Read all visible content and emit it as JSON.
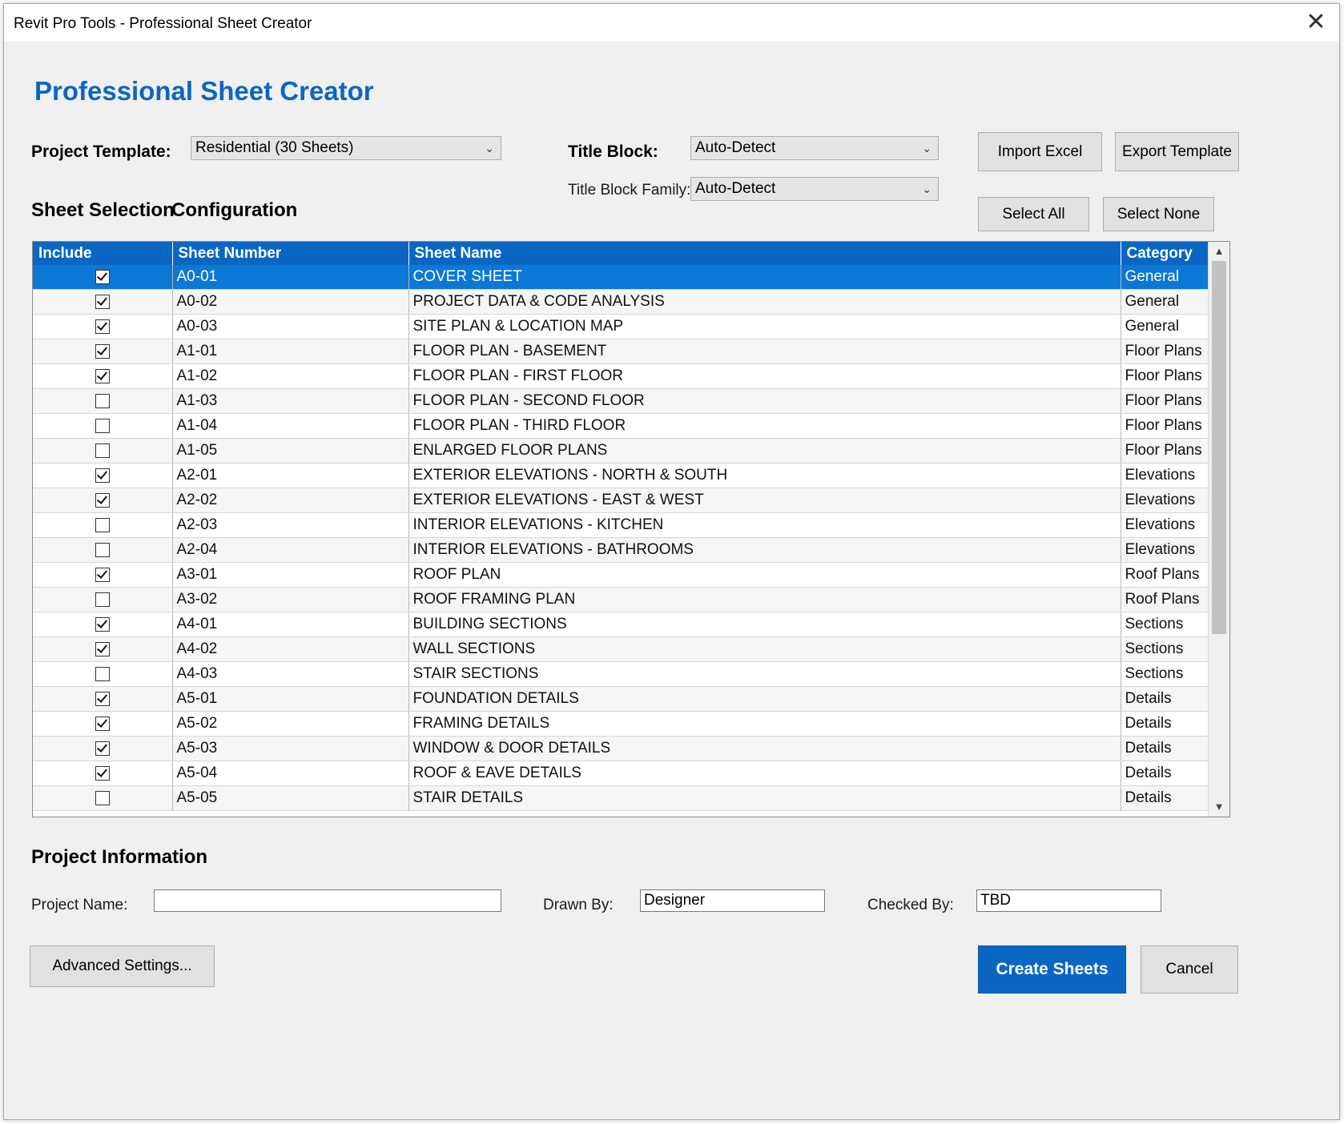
{
  "window": {
    "title": "Revit Pro Tools - Professional Sheet Creator",
    "close_glyph": "✕"
  },
  "heading": "Professional Sheet Creator",
  "template": {
    "label": "Project Template:",
    "value": "Residential (30 Sheets)"
  },
  "title_block": {
    "label": "Title Block:",
    "value": "Auto-Detect",
    "family_label": "Title Block Family:",
    "family_value": "Auto-Detect"
  },
  "buttons": {
    "import_excel": "Import Excel",
    "export_template": "Export Template",
    "select_all": "Select All",
    "select_none": "Select None",
    "advanced": "Advanced Settings...",
    "create": "Create Sheets",
    "cancel": "Cancel"
  },
  "sections": {
    "selection": "Sheet Selection",
    "configuration": "Configuration",
    "project_info": "Project Information"
  },
  "table": {
    "headers": [
      "Include",
      "Sheet Number",
      "Sheet Name",
      "Category"
    ],
    "rows": [
      {
        "include": true,
        "number": "A0-01",
        "name": "COVER SHEET",
        "category": "General"
      },
      {
        "include": true,
        "number": "A0-02",
        "name": "PROJECT DATA & CODE ANALYSIS",
        "category": "General"
      },
      {
        "include": true,
        "number": "A0-03",
        "name": "SITE PLAN & LOCATION MAP",
        "category": "General"
      },
      {
        "include": true,
        "number": "A1-01",
        "name": "FLOOR PLAN - BASEMENT",
        "category": "Floor Plans"
      },
      {
        "include": true,
        "number": "A1-02",
        "name": "FLOOR PLAN - FIRST FLOOR",
        "category": "Floor Plans"
      },
      {
        "include": false,
        "number": "A1-03",
        "name": "FLOOR PLAN - SECOND FLOOR",
        "category": "Floor Plans"
      },
      {
        "include": false,
        "number": "A1-04",
        "name": "FLOOR PLAN - THIRD FLOOR",
        "category": "Floor Plans"
      },
      {
        "include": false,
        "number": "A1-05",
        "name": "ENLARGED FLOOR PLANS",
        "category": "Floor Plans"
      },
      {
        "include": true,
        "number": "A2-01",
        "name": "EXTERIOR ELEVATIONS - NORTH & SOUTH",
        "category": "Elevations"
      },
      {
        "include": true,
        "number": "A2-02",
        "name": "EXTERIOR ELEVATIONS - EAST & WEST",
        "category": "Elevations"
      },
      {
        "include": false,
        "number": "A2-03",
        "name": "INTERIOR ELEVATIONS - KITCHEN",
        "category": "Elevations"
      },
      {
        "include": false,
        "number": "A2-04",
        "name": "INTERIOR ELEVATIONS - BATHROOMS",
        "category": "Elevations"
      },
      {
        "include": true,
        "number": "A3-01",
        "name": "ROOF PLAN",
        "category": "Roof Plans"
      },
      {
        "include": false,
        "number": "A3-02",
        "name": "ROOF FRAMING PLAN",
        "category": "Roof Plans"
      },
      {
        "include": true,
        "number": "A4-01",
        "name": "BUILDING SECTIONS",
        "category": "Sections"
      },
      {
        "include": true,
        "number": "A4-02",
        "name": "WALL SECTIONS",
        "category": "Sections"
      },
      {
        "include": false,
        "number": "A4-03",
        "name": "STAIR SECTIONS",
        "category": "Sections"
      },
      {
        "include": true,
        "number": "A5-01",
        "name": "FOUNDATION DETAILS",
        "category": "Details"
      },
      {
        "include": true,
        "number": "A5-02",
        "name": "FRAMING DETAILS",
        "category": "Details"
      },
      {
        "include": true,
        "number": "A5-03",
        "name": "WINDOW & DOOR DETAILS",
        "category": "Details"
      },
      {
        "include": true,
        "number": "A5-04",
        "name": "ROOF & EAVE DETAILS",
        "category": "Details"
      },
      {
        "include": false,
        "number": "A5-05",
        "name": "STAIR DETAILS",
        "category": "Details"
      }
    ],
    "selected_index": 0
  },
  "project": {
    "name_label": "Project Name:",
    "name_value": "",
    "drawn_label": "Drawn By:",
    "drawn_value": "Designer",
    "checked_label": "Checked By:",
    "checked_value": "TBD"
  },
  "colors": {
    "accent": "#0b66c3",
    "selected_row": "#0c78d6"
  }
}
